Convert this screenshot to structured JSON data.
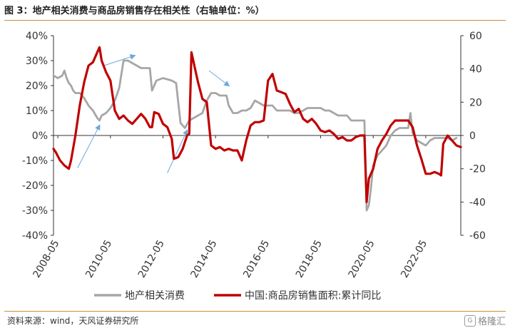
{
  "title": "图 3：地产相关消费与商品房销售存在相关性（右轴单位：%）",
  "source": "资料来源：wind，天风证券研究所",
  "watermark": "格隆汇",
  "watermark_icon": "G",
  "colors": {
    "consumption": "#a6a6a6",
    "sales": "#c00000",
    "arrow": "#6fa8dc",
    "rule": "#c98c3a"
  },
  "chart_data": {
    "type": "line",
    "title": "",
    "x_tick_labels": [
      "2008-05",
      "2010-05",
      "2012-05",
      "2014-05",
      "2016-05",
      "2018-05",
      "2020-05",
      "2022-05"
    ],
    "x_range": [
      "2008-03",
      "2023-09"
    ],
    "y_left": {
      "range": [
        -40,
        40
      ],
      "ticks": [
        40,
        30,
        20,
        10,
        0,
        -10,
        -20,
        -30,
        -40
      ],
      "tick_labels": [
        "40%",
        "30%",
        "20%",
        "10%",
        "0%",
        "-10%",
        "-20%",
        "-30%",
        "-40%"
      ],
      "unit": "%"
    },
    "y_right": {
      "range": [
        -60,
        60
      ],
      "ticks": [
        60,
        40,
        20,
        0,
        -20,
        -40,
        -60
      ],
      "tick_labels": [
        "60",
        "40",
        "20",
        "0",
        "-20",
        "-40",
        "-60"
      ]
    },
    "grid": false,
    "legend_position": "bottom",
    "series": [
      {
        "name": "地产相关消费",
        "axis": "left",
        "color": "#a6a6a6",
        "points": [
          [
            "2008-03",
            24
          ],
          [
            "2008-05",
            23
          ],
          [
            "2008-07",
            24
          ],
          [
            "2008-08",
            26
          ],
          [
            "2008-09",
            23
          ],
          [
            "2008-10",
            21
          ],
          [
            "2008-11",
            20
          ],
          [
            "2008-12",
            18
          ],
          [
            "2009-01",
            17
          ],
          [
            "2009-03",
            17
          ],
          [
            "2009-05",
            15
          ],
          [
            "2009-07",
            12
          ],
          [
            "2009-09",
            10
          ],
          [
            "2009-11",
            7
          ],
          [
            "2009-12",
            6
          ],
          [
            "2010-01",
            8
          ],
          [
            "2010-03",
            9
          ],
          [
            "2010-05",
            11
          ],
          [
            "2010-07",
            14
          ],
          [
            "2010-09",
            19
          ],
          [
            "2010-11",
            30
          ],
          [
            "2011-01",
            30
          ],
          [
            "2011-03",
            29
          ],
          [
            "2011-05",
            28
          ],
          [
            "2011-07",
            27
          ],
          [
            "2011-09",
            27
          ],
          [
            "2011-11",
            27
          ],
          [
            "2011-12",
            18
          ],
          [
            "2012-02",
            22
          ],
          [
            "2012-05",
            23
          ],
          [
            "2012-09",
            22
          ],
          [
            "2012-11",
            21
          ],
          [
            "2013-01",
            5
          ],
          [
            "2013-03",
            3
          ],
          [
            "2013-05",
            6
          ],
          [
            "2013-07",
            7
          ],
          [
            "2013-09",
            8
          ],
          [
            "2013-11",
            9
          ],
          [
            "2014-01",
            14
          ],
          [
            "2014-03",
            17
          ],
          [
            "2014-05",
            17
          ],
          [
            "2014-07",
            16
          ],
          [
            "2014-09",
            16
          ],
          [
            "2014-10",
            16
          ],
          [
            "2014-11",
            12
          ],
          [
            "2015-01",
            9
          ],
          [
            "2015-03",
            9
          ],
          [
            "2015-05",
            10
          ],
          [
            "2015-07",
            10
          ],
          [
            "2015-09",
            11
          ],
          [
            "2015-11",
            14
          ],
          [
            "2016-01",
            13
          ],
          [
            "2016-03",
            12
          ],
          [
            "2016-05",
            12
          ],
          [
            "2016-07",
            12
          ],
          [
            "2016-09",
            10
          ],
          [
            "2016-11",
            10
          ],
          [
            "2017-01",
            10
          ],
          [
            "2017-03",
            10
          ],
          [
            "2017-05",
            9
          ],
          [
            "2017-07",
            9
          ],
          [
            "2017-09",
            10
          ],
          [
            "2017-11",
            11
          ],
          [
            "2018-01",
            11
          ],
          [
            "2018-03",
            11
          ],
          [
            "2018-05",
            11
          ],
          [
            "2018-07",
            10
          ],
          [
            "2018-09",
            10
          ],
          [
            "2018-11",
            9
          ],
          [
            "2019-01",
            8
          ],
          [
            "2019-03",
            8
          ],
          [
            "2019-05",
            8
          ],
          [
            "2019-07",
            6
          ],
          [
            "2019-09",
            6
          ],
          [
            "2019-11",
            6
          ],
          [
            "2020-01",
            6
          ],
          [
            "2020-02",
            -30
          ],
          [
            "2020-03",
            -28
          ],
          [
            "2020-04",
            -21
          ],
          [
            "2020-05",
            -12
          ],
          [
            "2020-07",
            -8
          ],
          [
            "2020-09",
            -6
          ],
          [
            "2020-11",
            -4
          ],
          [
            "2021-01",
            0
          ],
          [
            "2021-03",
            2
          ],
          [
            "2021-05",
            3
          ],
          [
            "2021-07",
            3
          ],
          [
            "2021-09",
            3
          ],
          [
            "2021-10",
            9
          ],
          [
            "2021-11",
            1
          ],
          [
            "2022-01",
            -2
          ],
          [
            "2022-03",
            -3
          ],
          [
            "2022-05",
            -4
          ],
          [
            "2022-07",
            -2
          ],
          [
            "2022-09",
            -1
          ],
          [
            "2022-11",
            -1
          ],
          [
            "2023-01",
            -1
          ],
          [
            "2023-03",
            -1
          ],
          [
            "2023-05",
            -2
          ],
          [
            "2023-07",
            -1
          ]
        ]
      },
      {
        "name": "中国:商品房销售面积:累计同比",
        "axis": "right",
        "color": "#c00000",
        "points": [
          [
            "2008-03",
            -8
          ],
          [
            "2008-04",
            -10
          ],
          [
            "2008-06",
            -15
          ],
          [
            "2008-08",
            -18
          ],
          [
            "2008-10",
            -20
          ],
          [
            "2008-11",
            -15
          ],
          [
            "2009-01",
            0
          ],
          [
            "2009-03",
            18
          ],
          [
            "2009-05",
            32
          ],
          [
            "2009-07",
            42
          ],
          [
            "2009-09",
            44
          ],
          [
            "2009-11",
            50
          ],
          [
            "2009-12",
            53
          ],
          [
            "2010-01",
            45
          ],
          [
            "2010-03",
            38
          ],
          [
            "2010-05",
            33
          ],
          [
            "2010-07",
            15
          ],
          [
            "2010-09",
            10
          ],
          [
            "2010-11",
            12
          ],
          [
            "2011-01",
            9
          ],
          [
            "2011-03",
            7
          ],
          [
            "2011-05",
            10
          ],
          [
            "2011-07",
            13
          ],
          [
            "2011-09",
            10
          ],
          [
            "2011-11",
            5
          ],
          [
            "2011-12",
            5
          ],
          [
            "2012-01",
            14
          ],
          [
            "2012-03",
            13
          ],
          [
            "2012-05",
            7
          ],
          [
            "2012-07",
            5
          ],
          [
            "2012-09",
            -2
          ],
          [
            "2012-10",
            -14
          ],
          [
            "2012-12",
            -13
          ],
          [
            "2013-02",
            -8
          ],
          [
            "2013-04",
            0
          ],
          [
            "2013-05",
            1
          ],
          [
            "2013-06",
            50
          ],
          [
            "2013-08",
            38
          ],
          [
            "2013-09",
            32
          ],
          [
            "2013-11",
            22
          ],
          [
            "2014-01",
            20
          ],
          [
            "2014-03",
            -6
          ],
          [
            "2014-05",
            -8
          ],
          [
            "2014-07",
            -7
          ],
          [
            "2014-09",
            -9
          ],
          [
            "2014-11",
            -8
          ],
          [
            "2015-01",
            -9
          ],
          [
            "2015-03",
            -9
          ],
          [
            "2015-05",
            -15
          ],
          [
            "2015-07",
            -3
          ],
          [
            "2015-09",
            6
          ],
          [
            "2015-11",
            8
          ],
          [
            "2016-01",
            8
          ],
          [
            "2016-03",
            9
          ],
          [
            "2016-05",
            33
          ],
          [
            "2016-07",
            37
          ],
          [
            "2016-09",
            27
          ],
          [
            "2016-11",
            26
          ],
          [
            "2017-01",
            25
          ],
          [
            "2017-03",
            19
          ],
          [
            "2017-05",
            14
          ],
          [
            "2017-07",
            16
          ],
          [
            "2017-09",
            10
          ],
          [
            "2017-11",
            8
          ],
          [
            "2018-01",
            10
          ],
          [
            "2018-03",
            7
          ],
          [
            "2018-05",
            3
          ],
          [
            "2018-07",
            2
          ],
          [
            "2018-09",
            3
          ],
          [
            "2018-11",
            1
          ],
          [
            "2019-01",
            -2
          ],
          [
            "2019-03",
            -1
          ],
          [
            "2019-05",
            -3
          ],
          [
            "2019-07",
            -3
          ],
          [
            "2019-09",
            -1
          ],
          [
            "2019-11",
            0
          ],
          [
            "2020-01",
            0
          ],
          [
            "2020-02",
            -40
          ],
          [
            "2020-03",
            -26
          ],
          [
            "2020-05",
            -20
          ],
          [
            "2020-07",
            -8
          ],
          [
            "2020-09",
            -3
          ],
          [
            "2020-11",
            1
          ],
          [
            "2021-01",
            6
          ],
          [
            "2021-03",
            9
          ],
          [
            "2021-05",
            9
          ],
          [
            "2021-07",
            9
          ],
          [
            "2021-09",
            9
          ],
          [
            "2021-11",
            5
          ],
          [
            "2022-01",
            -6
          ],
          [
            "2022-03",
            -14
          ],
          [
            "2022-05",
            -23
          ],
          [
            "2022-07",
            -23
          ],
          [
            "2022-09",
            -22
          ],
          [
            "2022-11",
            -23
          ],
          [
            "2022-12",
            -24
          ],
          [
            "2023-01",
            -5
          ],
          [
            "2023-03",
            0
          ],
          [
            "2023-05",
            -3
          ],
          [
            "2023-07",
            -6
          ],
          [
            "2023-09",
            -7
          ]
        ]
      }
    ],
    "annotations": [
      {
        "type": "arrow",
        "from": [
          "2009-02",
          -13
        ],
        "to": [
          "2009-12",
          4
        ]
      },
      {
        "type": "arrow",
        "from": [
          "2010-02",
          28
        ],
        "to": [
          "2011-04",
          32
        ]
      },
      {
        "type": "arrow",
        "from": [
          "2012-07",
          -15
        ],
        "to": [
          "2013-04",
          2
        ]
      },
      {
        "type": "arrow",
        "from": [
          "2014-02",
          26
        ],
        "to": [
          "2014-11",
          20
        ]
      }
    ]
  }
}
